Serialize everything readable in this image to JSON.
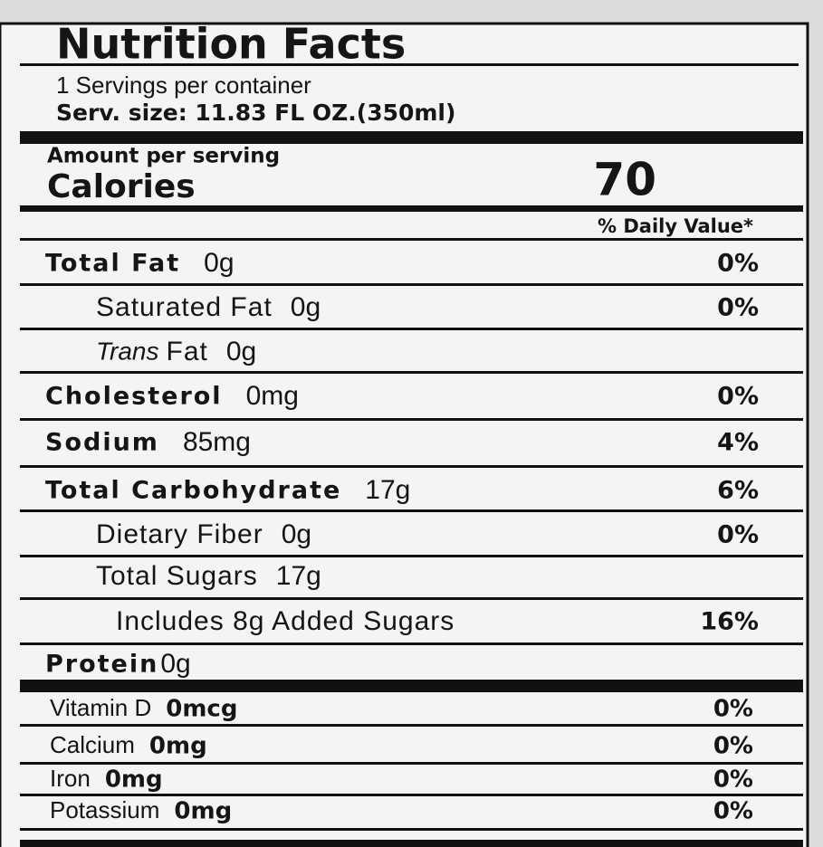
{
  "label": {
    "title": "Nutrition Facts",
    "servings": "1 Servings per container",
    "serving_size": "Serv. size: 11.83 FL OZ.(350ml)",
    "amount_per_serving": "Amount per serving",
    "calories_label": "Calories",
    "calories_value": "70",
    "daily_value_header": "% Daily Value*",
    "nutrients": [
      {
        "name": "Total Fat",
        "amount": "0g",
        "daily_value": "0%"
      },
      {
        "name": "Saturated Fat",
        "amount": "0g",
        "daily_value": "0%"
      },
      {
        "name_prefix": "Trans",
        "name": "Fat",
        "amount": "0g"
      },
      {
        "name": "Cholesterol",
        "amount": "0mg",
        "daily_value": "0%"
      },
      {
        "name": "Sodium",
        "amount": "85mg",
        "daily_value": "4%"
      },
      {
        "name": "Total Carbohydrate",
        "amount": "17g",
        "daily_value": "6%"
      },
      {
        "name": "Dietary Fiber",
        "amount": "0g",
        "daily_value": "0%"
      },
      {
        "name": "Total Sugars",
        "amount": "17g"
      },
      {
        "name": "Includes 8g Added Sugars",
        "daily_value": "16%"
      },
      {
        "name": "Protein",
        "amount": "0g"
      }
    ],
    "vitamins": [
      {
        "name": "Vitamin D",
        "amount": "0mcg",
        "daily_value": "0%"
      },
      {
        "name": "Calcium",
        "amount": "0mg",
        "daily_value": "0%"
      },
      {
        "name": "Iron",
        "amount": "0mg",
        "daily_value": "0%"
      },
      {
        "name": "Potassium",
        "amount": "0mg",
        "daily_value": "0%"
      }
    ]
  }
}
